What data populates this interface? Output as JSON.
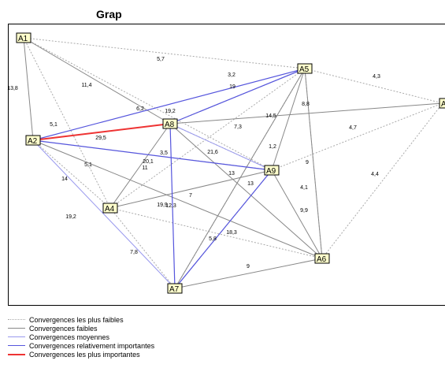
{
  "title": "Grap",
  "colors": {
    "weakest": "#aaaaaa",
    "weak": "#888888",
    "medium": "#9999ee",
    "strong": "#5555dd",
    "strongest": "#ee3333",
    "node_fill": "#ffffcc"
  },
  "legend": [
    {
      "level": "weakest",
      "label": "Convergences les plus faibles"
    },
    {
      "level": "weak",
      "label": "Convergences faibles"
    },
    {
      "level": "medium",
      "label": "Convergences moyennes"
    },
    {
      "level": "strong",
      "label": "Convergences relativement importantes"
    },
    {
      "level": "strongest",
      "label": "Convergences les plus importantes"
    }
  ],
  "nodes": [
    {
      "id": "A1",
      "label": "A1"
    },
    {
      "id": "A2",
      "label": "A2"
    },
    {
      "id": "A4",
      "label": "A4"
    },
    {
      "id": "A5",
      "label": "A5"
    },
    {
      "id": "A6",
      "label": "A6"
    },
    {
      "id": "A7",
      "label": "A7"
    },
    {
      "id": "A8",
      "label": "A8"
    },
    {
      "id": "A9",
      "label": "A9"
    },
    {
      "id": "A3",
      "label": "A"
    }
  ],
  "edges": [
    {
      "from": "A2",
      "to": "A8",
      "level": "strongest",
      "label": "29,5"
    },
    {
      "from": "A2",
      "to": "A5",
      "level": "strong",
      "label": "19,2"
    },
    {
      "from": "A2",
      "to": "A9",
      "level": "strong",
      "label": "3,5"
    },
    {
      "from": "A8",
      "to": "A5",
      "level": "strong",
      "label": "19"
    },
    {
      "from": "A8",
      "to": "A7",
      "level": "strong",
      "label": "12,3"
    },
    {
      "from": "A7",
      "to": "A9",
      "level": "strong",
      "label": "5,8"
    },
    {
      "from": "A2",
      "to": "A7",
      "level": "medium",
      "label": "7,8"
    },
    {
      "from": "A8",
      "to": "A9",
      "level": "medium",
      "label": "21,6"
    },
    {
      "from": "A1",
      "to": "A2",
      "level": "weak",
      "label": "13,8"
    },
    {
      "from": "A1",
      "to": "A8",
      "level": "weak",
      "label": "11,4"
    },
    {
      "from": "A8",
      "to": "A3",
      "level": "weak",
      "label": "14,5"
    },
    {
      "from": "A8",
      "to": "A4",
      "level": "weak",
      "label": "20,1"
    },
    {
      "from": "A8",
      "to": "A6",
      "level": "weak",
      "label": "7,3"
    },
    {
      "from": "A2",
      "to": "A6",
      "level": "weak",
      "label": "5,1"
    },
    {
      "from": "A5",
      "to": "A6",
      "level": "weak",
      "label": "9"
    },
    {
      "from": "A5",
      "to": "A7",
      "level": "weak",
      "label": "8,8"
    },
    {
      "from": "A7",
      "to": "A6",
      "level": "weak",
      "label": "9"
    },
    {
      "from": "A4",
      "to": "A9",
      "level": "weak",
      "label": "7"
    },
    {
      "from": "A9",
      "to": "A6",
      "level": "weak",
      "label": "9,9"
    },
    {
      "from": "A9",
      "to": "A5",
      "level": "weak",
      "label": "1,2"
    },
    {
      "from": "A1",
      "to": "A5",
      "level": "weakest",
      "label": "5,7"
    },
    {
      "from": "A1",
      "to": "A4",
      "level": "weakest",
      "label": "5,1"
    },
    {
      "from": "A1",
      "to": "A9",
      "level": "weakest",
      "label": "6,2"
    },
    {
      "from": "A5",
      "to": "A3",
      "level": "weakest",
      "label": "4,3"
    },
    {
      "from": "A2",
      "to": "A4",
      "level": "weakest",
      "label": "14"
    },
    {
      "from": "A4",
      "to": "A7",
      "level": "weakest",
      "label": "19,2"
    },
    {
      "from": "A4",
      "to": "A5",
      "level": "weakest",
      "label": "3,2"
    },
    {
      "from": "A4",
      "to": "A6",
      "level": "weakest",
      "label": "19,9"
    },
    {
      "from": "A8",
      "to": "A5",
      "level": "weakest",
      "label": ""
    },
    {
      "from": "A9",
      "to": "A3",
      "level": "weakest",
      "label": "4,7"
    },
    {
      "from": "A6",
      "to": "A3",
      "level": "weakest",
      "label": "4,4"
    },
    {
      "from": "A7",
      "to": "A5",
      "level": "weakest",
      "label": "18,3"
    },
    {
      "from": "A9",
      "to": "A2",
      "level": "weakest",
      "label": "11"
    },
    {
      "from": "A9",
      "to": "A7",
      "level": "weakest",
      "label": "13"
    },
    {
      "from": "A5",
      "to": "A6",
      "level": "weakest",
      "label": "4,1"
    },
    {
      "from": "A8",
      "to": "A9",
      "level": "weakest",
      "label": "13"
    }
  ]
}
